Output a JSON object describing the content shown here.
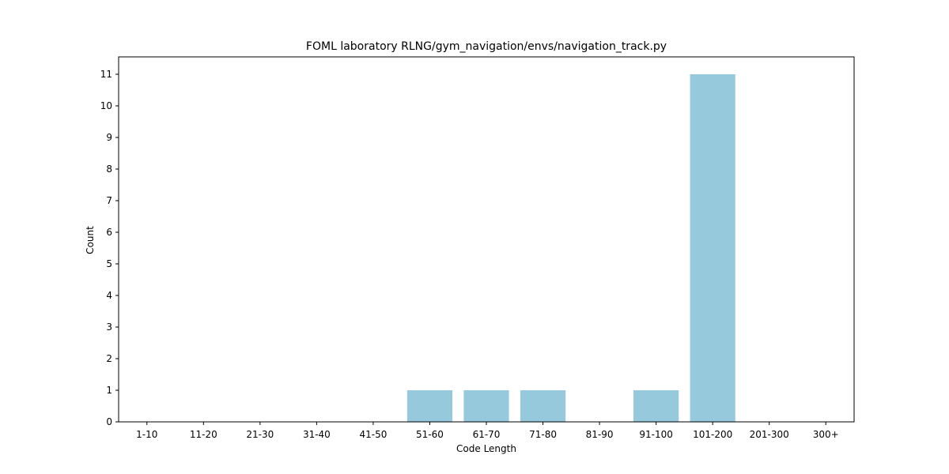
{
  "chart_data": {
    "type": "bar",
    "title": "FOML laboratory RLNG/gym_navigation/envs/navigation_track.py",
    "xlabel": "Code Length",
    "ylabel": "Count",
    "categories": [
      "1-10",
      "11-20",
      "21-30",
      "31-40",
      "41-50",
      "51-60",
      "61-70",
      "71-80",
      "81-90",
      "91-100",
      "101-200",
      "201-300",
      "300+"
    ],
    "values": [
      0,
      0,
      0,
      0,
      0,
      1,
      1,
      1,
      0,
      1,
      11,
      0,
      0
    ],
    "ylim": [
      0,
      11.55
    ],
    "yticks": [
      0,
      1,
      2,
      3,
      4,
      5,
      6,
      7,
      8,
      9,
      10,
      11
    ],
    "bar_color": "#96c9dc",
    "grid": false,
    "legend": "none"
  }
}
